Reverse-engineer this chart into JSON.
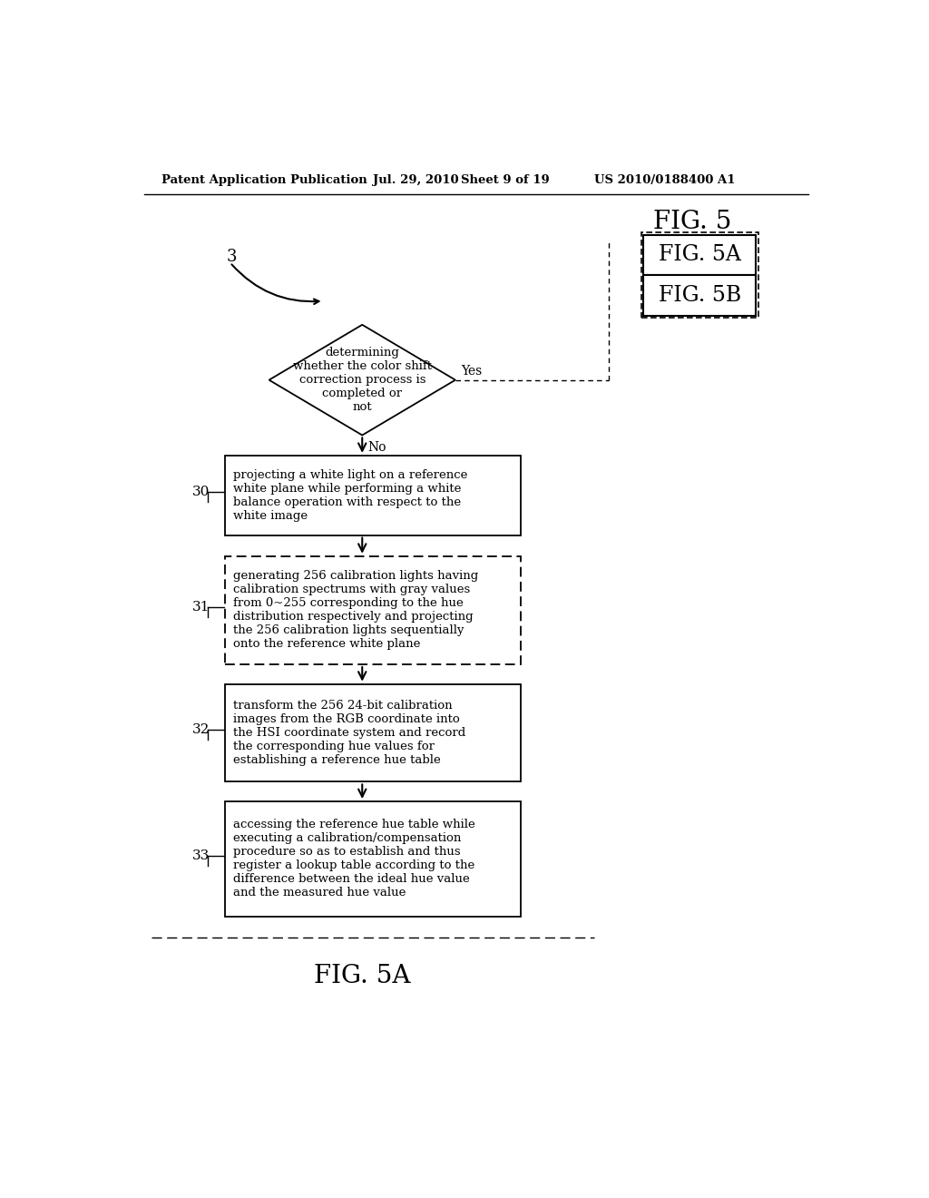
{
  "bg_color": "#ffffff",
  "header_text": "Patent Application Publication",
  "header_date": "Jul. 29, 2010",
  "header_sheet": "Sheet 9 of 19",
  "header_patent": "US 2010/0188400 A1",
  "fig_label": "FIG. 5A",
  "fig5_label": "FIG. 5",
  "fig5a_label": "FIG. 5A",
  "fig5b_label": "FIG. 5B",
  "diamond_text": "determining\nwhether the color shift\ncorrection process is\ncompleted or\nnot",
  "yes_label": "Yes",
  "no_label": "No",
  "box0_label": "30",
  "box0_text": "projecting a white light on a reference\nwhite plane while performing a white\nbalance operation with respect to the\nwhite image",
  "box1_label": "31",
  "box1_text": "generating 256 calibration lights having\ncalibration spectrums with gray values\nfrom 0~255 corresponding to the hue\ndistribution respectively and projecting\nthe 256 calibration lights sequentially\nonto the reference white plane",
  "box2_label": "32",
  "box2_text": "transform the 256 24-bit calibration\nimages from the RGB coordinate into\nthe HSI coordinate system and record\nthe corresponding hue values for\nestablishing a reference hue table",
  "box3_label": "33",
  "box3_text": "accessing the reference hue table while\nexecuting a calibration/compensation\nprocedure so as to establish and thus\nregister a lookup table according to the\ndifference between the ideal hue value\nand the measured hue value",
  "entry_label": "3"
}
